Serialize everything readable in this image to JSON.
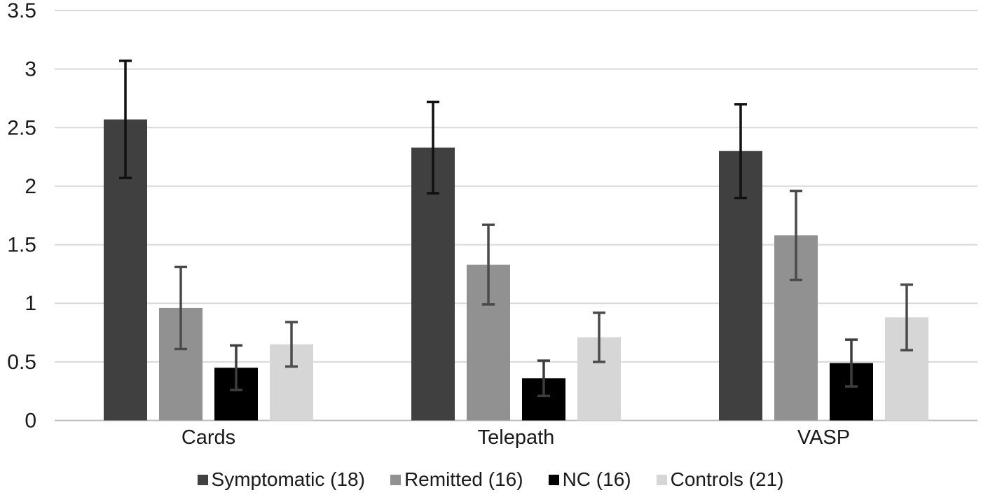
{
  "chart_data": {
    "type": "bar",
    "title": "",
    "categories": [
      "Cards",
      "Telepath",
      "VASP"
    ],
    "series": [
      {
        "name": "Symptomatic (18)",
        "color": "#404040",
        "error_color": "#111111",
        "values": [
          2.57,
          2.33,
          2.3
        ],
        "errors": [
          0.5,
          0.39,
          0.4
        ]
      },
      {
        "name": "Remitted (16)",
        "color": "#919191",
        "error_color": "#4a4a4a",
        "values": [
          0.96,
          1.33,
          1.58
        ],
        "errors": [
          0.35,
          0.34,
          0.38
        ]
      },
      {
        "name": "NC (16)",
        "color": "#000000",
        "error_color": "#3d3d3d",
        "values": [
          0.45,
          0.36,
          0.49
        ],
        "errors": [
          0.19,
          0.15,
          0.2
        ]
      },
      {
        "name": "Controls (21)",
        "color": "#d6d6d6",
        "error_color": "#4a4a4a",
        "values": [
          0.65,
          0.71,
          0.88
        ],
        "errors": [
          0.19,
          0.21,
          0.28
        ]
      }
    ],
    "y_axis": {
      "min": 0,
      "max": 3.5,
      "step": 0.5,
      "tick_labels": [
        "0",
        "0.5",
        "1",
        "1.5",
        "2",
        "2.5",
        "3",
        "3.5"
      ]
    },
    "grid": true,
    "legend_position": "bottom"
  },
  "styles": {
    "grid_color": "#d9d9d9",
    "axis_color": "#c0c0c0",
    "background": "#ffffff",
    "text_color": "#1a1a1a"
  }
}
